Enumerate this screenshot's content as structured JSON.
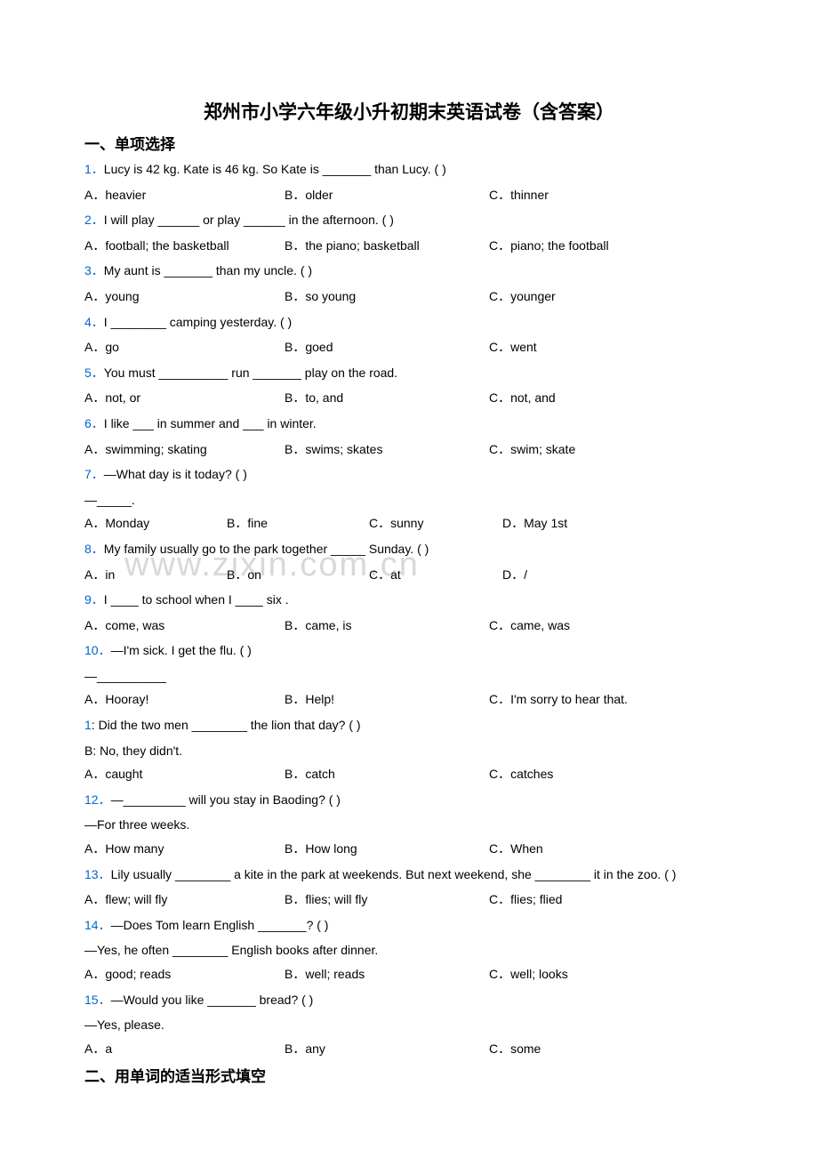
{
  "title": "郑州市小学六年级小升初期末英语试卷（含答案）",
  "section1_header": "一、单项选择",
  "section2_header": "二、用单词的适当形式填空",
  "watermark": "www.zixin.com.cn",
  "colors": {
    "question_number": "#0066cc",
    "text": "#000000",
    "watermark": "#d8d8d8",
    "background": "#ffffff"
  },
  "questions": [
    {
      "num": "1．",
      "text": "Lucy is 42 kg. Kate is 46 kg. So Kate is _______ than Lucy. (    )",
      "options": [
        "A．heavier",
        "B．older",
        "C．thinner"
      ],
      "layout": 3
    },
    {
      "num": "2．",
      "text": "I will play ______ or play ______ in the afternoon. (   )",
      "options": [
        "A．football; the basketball",
        "B．the piano; basketball",
        "C．piano; the football"
      ],
      "layout": 3
    },
    {
      "num": "3．",
      "text": "My aunt is _______ than my uncle. (   )",
      "options": [
        "A．young",
        "B．so young",
        "C．younger"
      ],
      "layout": 3
    },
    {
      "num": "4．",
      "text": "I ________ camping yesterday. (    )",
      "options": [
        "A．go",
        "B．goed",
        "C．went"
      ],
      "layout": 3
    },
    {
      "num": "5．",
      "text": "You must __________ run _______ play on the road.",
      "options": [
        "A．not, or",
        "B．to, and",
        "C．not, and"
      ],
      "layout": 3
    },
    {
      "num": "6．",
      "text": "I like ___ in summer and ___ in winter.",
      "options": [
        "A．swimming; skating",
        "B．swims; skates",
        "C．swim; skate"
      ],
      "layout": 3
    },
    {
      "num": "7．",
      "text": "—What day is it today? (    )",
      "continuation": "—_____.",
      "options": [
        "A．Monday",
        "B．fine",
        "C．sunny",
        "D．May 1st"
      ],
      "layout": 4
    },
    {
      "num": "8．",
      "text": "My family usually go to the park together _____ Sunday. (   )",
      "options": [
        "A．in",
        "B．on",
        "C．at",
        "D．/"
      ],
      "layout": 4
    },
    {
      "num": "9．",
      "text": "I ____ to school when I ____ six .",
      "options": [
        "A．come, was",
        "B．came, is",
        "C．came, was"
      ],
      "layout": 3
    },
    {
      "num": "10．",
      "text": "—I'm sick. I get the flu. (    )",
      "continuation": "—__________",
      "options": [
        "A．Hooray!",
        "B．Help!",
        "C．I'm sorry to hear that."
      ],
      "layout": 3
    },
    {
      "num": "1",
      "text": ": Did the two men ________ the lion that day? (    )",
      "continuation": "B: No, they didn't.",
      "options": [
        "A．caught",
        "B．catch",
        "C．catches"
      ],
      "layout": 3
    },
    {
      "num": "12．",
      "text": "—_________ will you stay in Baoding? (   )",
      "continuation": "—For three weeks.",
      "options": [
        "A．How many",
        "B．How long",
        "C．When"
      ],
      "layout": 3
    },
    {
      "num": "13．",
      "text": "Lily usually ________ a kite in the park at weekends. But next weekend, she ________ it in the zoo. (    )",
      "options": [
        "A．flew; will fly",
        "B．flies; will fly",
        "C．flies; flied"
      ],
      "layout": 3
    },
    {
      "num": "14．",
      "text": "—Does Tom learn English _______?  (       )",
      "continuation": "—Yes, he often ________ English books after dinner.",
      "options": [
        "A．good; reads",
        "B．well; reads",
        "C．well; looks"
      ],
      "layout": 3
    },
    {
      "num": "15．",
      "text": "—Would you like _______ bread? (           )",
      "continuation": "—Yes, please.",
      "options": [
        "A．a",
        "B．any",
        "C．some"
      ],
      "layout": 3
    }
  ]
}
